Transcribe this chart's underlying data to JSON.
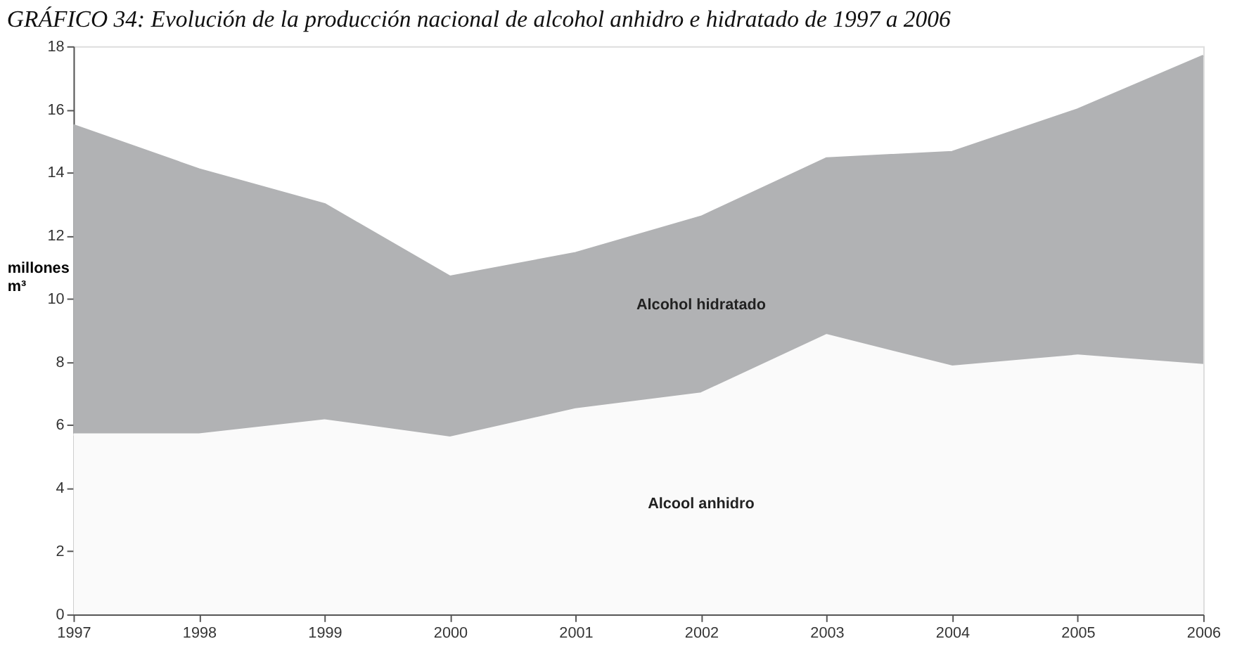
{
  "chart_data": {
    "type": "area",
    "stacked": true,
    "title": "GRÁFICO 34:    Evolución de la producción nacional de alcohol anhidro e hidratado de 1997 a 2006",
    "ylabel": "millones m³",
    "x": [
      1997,
      1998,
      1999,
      2000,
      2001,
      2002,
      2003,
      2004,
      2005,
      2006
    ],
    "xlim": [
      1997,
      2006
    ],
    "xticks": [
      1997,
      1998,
      1999,
      2000,
      2001,
      2002,
      2003,
      2004,
      2005,
      2006
    ],
    "ylim": [
      0,
      18
    ],
    "yticks": [
      0,
      2,
      4,
      6,
      8,
      10,
      12,
      14,
      16,
      18
    ],
    "series": [
      {
        "name": "Alcool anhidro",
        "color": "#fafafa",
        "values": [
          5.7,
          5.7,
          6.15,
          5.6,
          6.5,
          7.0,
          8.85,
          7.85,
          8.2,
          7.9
        ]
      },
      {
        "name": "Alcohol hidratado",
        "color": "#b1b2b4",
        "values": [
          9.8,
          8.4,
          6.85,
          5.1,
          4.95,
          5.6,
          5.6,
          6.8,
          7.8,
          9.8
        ]
      }
    ],
    "grid": false,
    "legend": false
  }
}
